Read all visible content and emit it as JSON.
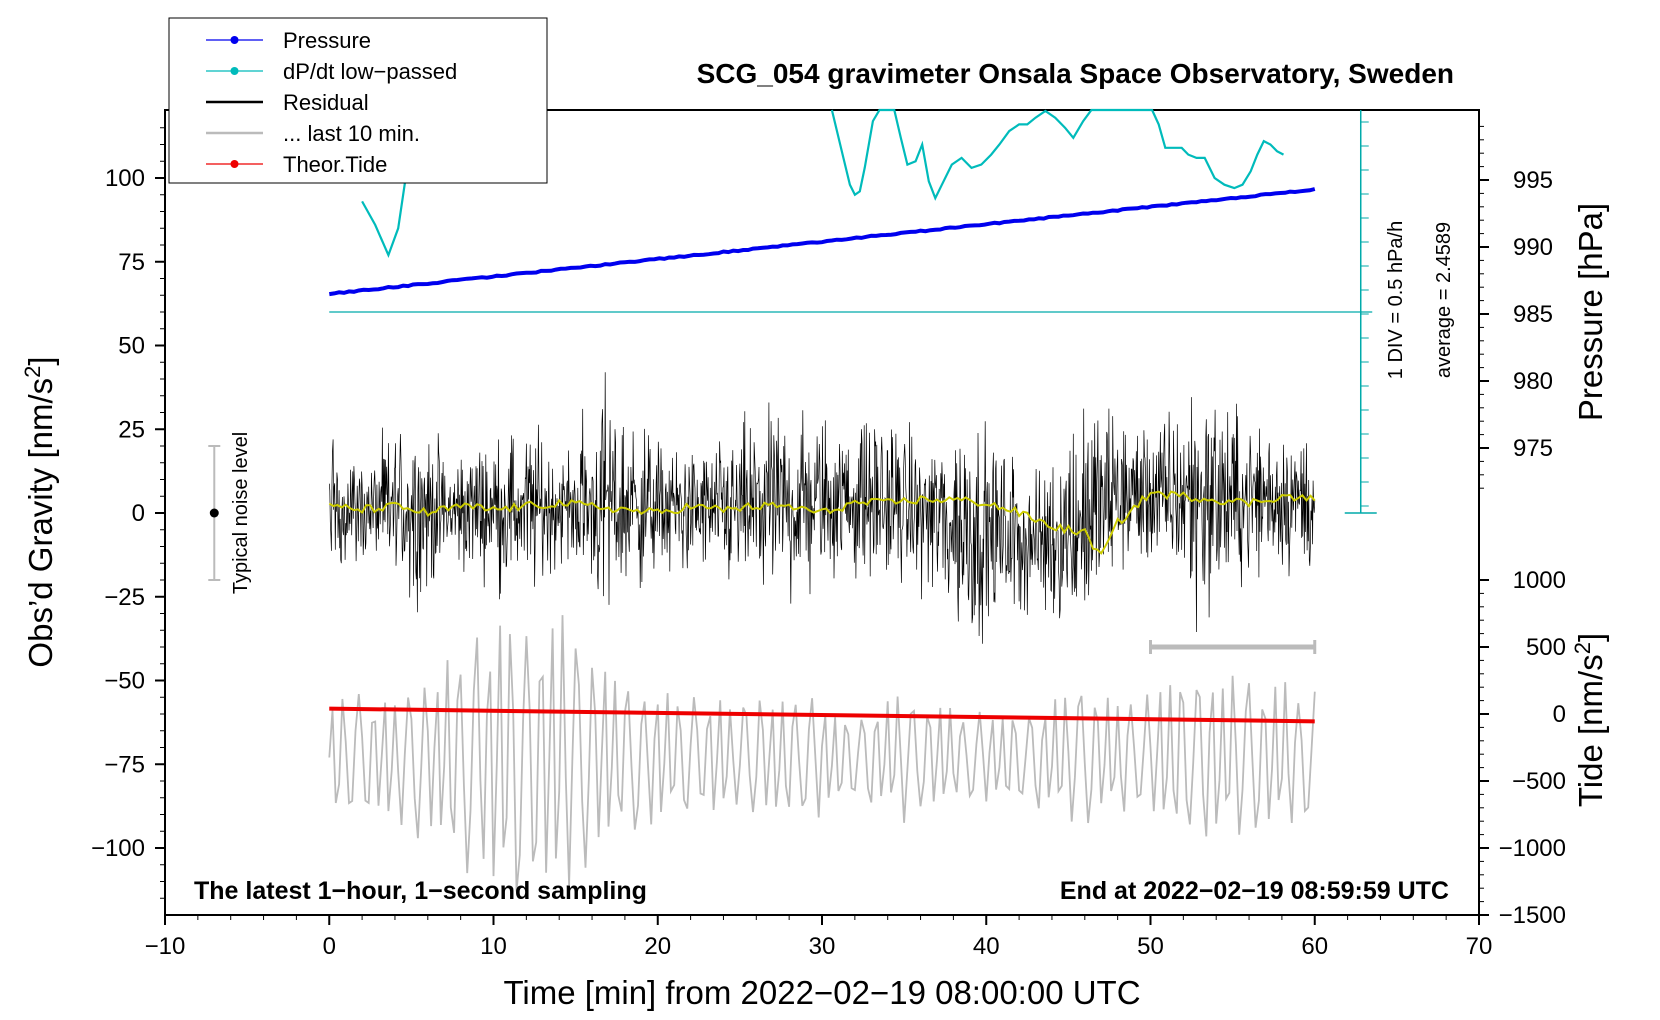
{
  "chart_data": {
    "type": "line",
    "title": "SCG_054 gravimeter Onsala Space Observatory, Sweden",
    "xlabel": "Time [min] from 2022−02−19 08:00:00 UTC",
    "ylabel_left": "Obs’d Gravity [nm/s",
    "ylabel_left_sup": "2",
    "ylabel_left_end": "]",
    "ylabel_right_top": "Pressure [hPa]",
    "ylabel_right_bottom": "Tide [nm/s",
    "ylabel_right_bottom_sup": "2",
    "ylabel_right_bottom_end": "]",
    "xlim": [
      -10,
      70
    ],
    "ylim_left": [
      -120,
      120
    ],
    "x_ticks": [
      -10,
      0,
      10,
      20,
      30,
      40,
      50,
      60,
      70
    ],
    "x_tick_labels": [
      "−10",
      "0",
      "10",
      "20",
      "30",
      "40",
      "50",
      "60",
      "70"
    ],
    "left_ticks": [
      -100,
      -75,
      -50,
      -25,
      0,
      25,
      50,
      75,
      100
    ],
    "left_tick_labels": [
      "−100",
      "−75",
      "−50",
      "−25",
      "0",
      "25",
      "50",
      "75",
      "100"
    ],
    "pressure_ticks": [
      975,
      980,
      985,
      990,
      995
    ],
    "pressure_tick_labels": [
      "975",
      "980",
      "985",
      "990",
      "995"
    ],
    "tide_ticks": [
      -1500,
      -1000,
      -500,
      0,
      500,
      1000
    ],
    "tide_tick_labels": [
      "−1500",
      "−1000",
      "−500",
      "0",
      "500",
      "1000"
    ],
    "annotation_left": "The latest 1−hour, 1−second sampling",
    "annotation_right": "End at 2022−02−19 08:59:59 UTC",
    "noise_label": "Typical noise level",
    "noise_level": {
      "x": -7,
      "y": 0,
      "ymin": -20,
      "ymax": 20
    },
    "dpdt_scale_label": "1 DIV = 0.5 hPa/h",
    "dpdt_average_label": "average = 2.4589",
    "last10_bar": {
      "x_start": 50,
      "x_end": 60,
      "y": -40
    },
    "legend": [
      {
        "label": "Pressure",
        "color": "#0000ee",
        "marker": true
      },
      {
        "label": "dP/dt low−passed",
        "color": "#00bbbb",
        "marker": true
      },
      {
        "label": "Residual",
        "color": "#000000",
        "marker": false
      },
      {
        "label": "... last 10 min.",
        "color": "#bbbbbb",
        "marker": false
      },
      {
        "label": "Theor.Tide",
        "color": "#ee0000",
        "marker": true
      }
    ],
    "series": [
      {
        "name": "Pressure",
        "axis": "pressure",
        "color": "#0000ee",
        "x": [
          0,
          60
        ],
        "values": [
          986.5,
          994.3
        ]
      },
      {
        "name": "Theor.Tide",
        "axis": "tide",
        "color": "#ee0000",
        "x": [
          0,
          60
        ],
        "values": [
          40,
          -55
        ]
      },
      {
        "name": "dP/dt low−passed",
        "axis": "dpdt",
        "color": "#00bbbb",
        "baseline_y": 60,
        "div_px": 18,
        "x": [
          2,
          2.8,
          3.6,
          4.2,
          4.8,
          5.1
        ],
        "values": [
          93,
          86,
          77,
          85,
          105,
          124
        ],
        "x2": [
          30.6,
          31.3,
          31.7,
          32.0,
          32.3,
          32.6,
          33.1,
          33.5,
          34.0,
          34.4,
          34.8,
          35.2,
          35.7,
          36.1,
          36.5,
          36.9,
          37.3,
          37.9,
          38.5,
          39.1,
          39.7,
          40.3,
          40.8,
          41.4,
          42.0,
          42.5,
          43.0,
          43.6,
          44.2,
          44.8,
          45.3,
          45.9,
          46.4,
          47.0,
          47.7,
          48.4,
          49.0,
          49.6,
          50.1,
          50.5,
          50.9,
          51.4,
          51.9,
          52.3,
          52.8,
          53.3,
          53.9,
          54.5,
          55.1,
          55.6,
          56.1,
          56.5,
          56.9,
          57.3,
          57.7,
          58.1
        ],
        "values2": [
          124,
          106,
          98,
          95,
          96,
          103,
          117,
          124,
          124,
          124,
          112,
          104,
          105,
          110,
          99,
          94,
          98,
          104,
          106,
          103,
          104,
          107,
          110,
          114,
          116,
          116,
          118,
          120,
          118,
          115,
          112,
          117,
          122,
          124,
          124,
          122,
          124,
          124,
          122,
          116,
          109,
          109,
          109,
          107,
          106,
          106,
          100,
          98,
          97,
          98,
          102,
          107,
          111,
          110,
          108,
          107
        ]
      },
      {
        "name": "Residual",
        "axis": "left",
        "color": "#000000",
        "x_range": [
          0,
          60
        ],
        "envelope": [
          30,
          20,
          38,
          25,
          28,
          35,
          22,
          50,
          32,
          25,
          30,
          38,
          40,
          30,
          35,
          28,
          50,
          35,
          30,
          48,
          35,
          28,
          52,
          36,
          30,
          30
        ],
        "mean": [
          2,
          1,
          2,
          0,
          2,
          1,
          2,
          3,
          2,
          1,
          0,
          2,
          3,
          4,
          4,
          0,
          -4,
          -6,
          -9,
          -3,
          6,
          5,
          5,
          4,
          5,
          3
        ]
      },
      {
        "name": "Low−passed residual",
        "axis": "left",
        "color": "#cccc00",
        "x": [
          0,
          2,
          4,
          6,
          8,
          10,
          12,
          14,
          16,
          18,
          20,
          22,
          24,
          26,
          28,
          30,
          32,
          34,
          36,
          38,
          40,
          42,
          44,
          46,
          47,
          48,
          50,
          52,
          54,
          56,
          58,
          60
        ],
        "values": [
          2,
          1,
          2,
          0,
          2,
          1,
          2,
          3,
          2,
          1,
          0,
          2,
          1,
          2,
          2,
          0,
          3,
          3,
          4,
          4,
          3,
          0,
          -4,
          -6,
          -13,
          -3,
          6,
          5,
          4,
          3,
          5,
          4
        ]
      },
      {
        "name": "... last 10 min.",
        "axis": "left",
        "color": "#bbbbbb",
        "x_range": [
          0,
          60
        ],
        "center": -73,
        "amplitude": [
          20,
          20,
          30,
          48,
          45,
          25,
          20,
          18,
          22,
          15,
          20,
          15,
          15,
          22,
          18,
          30,
          25,
          20
        ]
      }
    ]
  }
}
